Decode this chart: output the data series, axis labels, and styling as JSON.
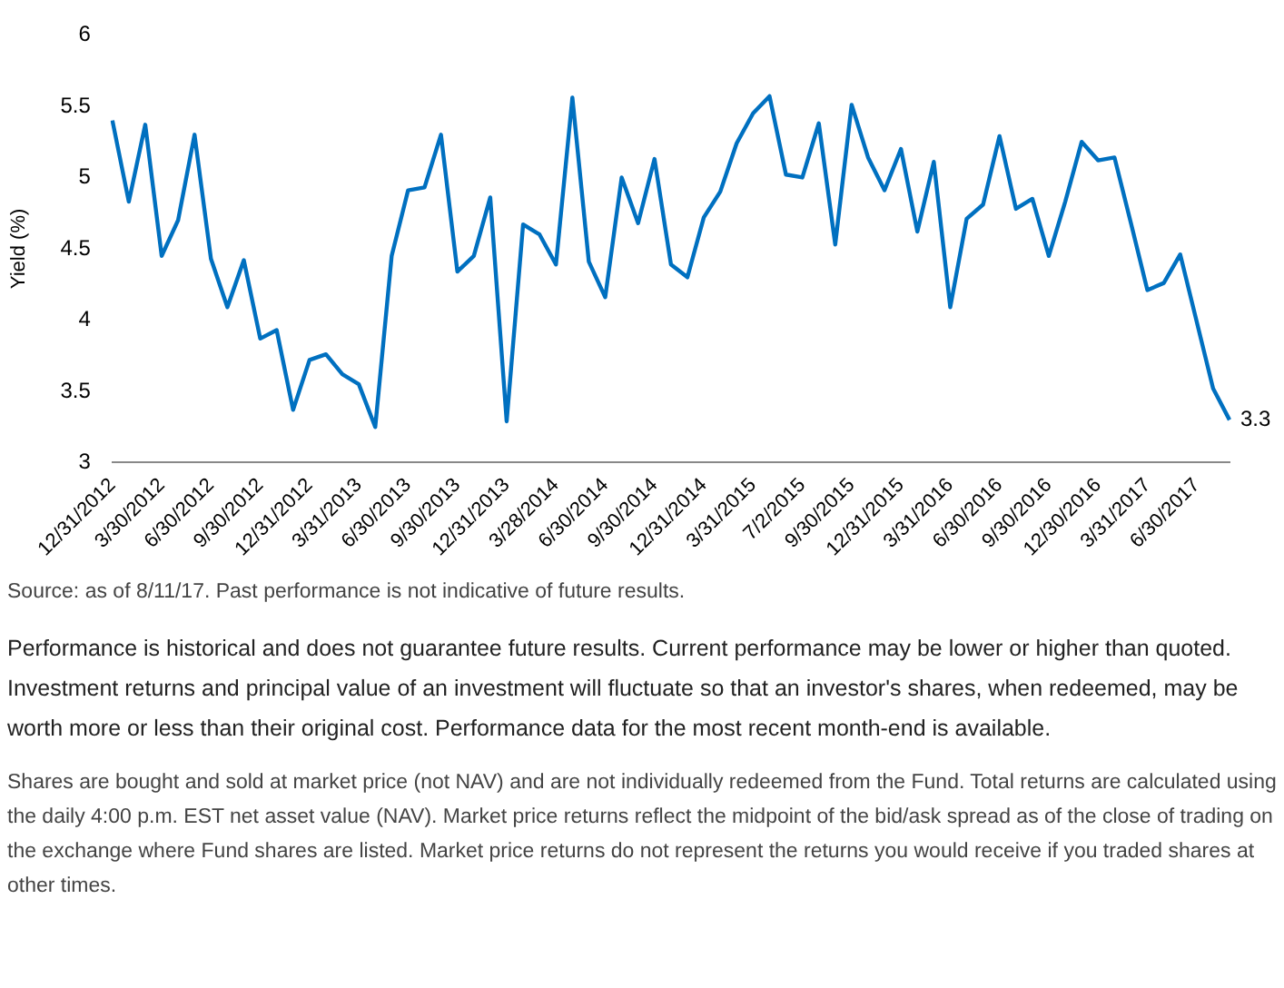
{
  "chart_data": {
    "type": "line",
    "ylabel": "Yield (%)",
    "categories": [
      "12/31/2012",
      null,
      null,
      "3/30/2012",
      null,
      null,
      "6/30/2012",
      null,
      null,
      "9/30/2012",
      null,
      null,
      "12/31/2012",
      null,
      null,
      "3/31/2013",
      null,
      null,
      "6/30/2013",
      null,
      null,
      "9/30/2013",
      null,
      null,
      "12/31/2013",
      null,
      null,
      "3/28/2014",
      null,
      null,
      "6/30/2014",
      null,
      null,
      "9/30/2014",
      null,
      null,
      "12/31/2014",
      null,
      null,
      "3/31/2015",
      null,
      null,
      "7/2/2015",
      null,
      null,
      "9/30/2015",
      null,
      null,
      "12/31/2015",
      null,
      null,
      "3/31/2016",
      null,
      null,
      "6/30/2016",
      null,
      null,
      "9/30/2016",
      null,
      null,
      "12/30/2016",
      null,
      null,
      "3/31/2017",
      null,
      null,
      "6/30/2017",
      null,
      null
    ],
    "series": [
      {
        "color": "#0070c0",
        "values": [
          5.4,
          4.83,
          5.37,
          4.45,
          4.7,
          5.3,
          4.43,
          4.09,
          4.42,
          3.87,
          3.93,
          3.37,
          3.72,
          3.76,
          3.62,
          3.55,
          3.25,
          4.45,
          4.91,
          4.93,
          5.3,
          4.34,
          4.45,
          4.86,
          3.29,
          4.67,
          4.6,
          4.39,
          5.56,
          4.41,
          4.16,
          5.0,
          4.68,
          5.13,
          4.39,
          4.3,
          4.72,
          4.9,
          5.24,
          5.45,
          5.57,
          5.02,
          5.0,
          5.38,
          4.53,
          5.51,
          5.14,
          4.91,
          5.2,
          4.62,
          5.11,
          4.09,
          4.71,
          4.81,
          5.29,
          4.78,
          4.85,
          4.45,
          4.83,
          5.25,
          5.12,
          5.14,
          4.68,
          4.21,
          4.26,
          4.46,
          3.99,
          3.52,
          3.3
        ],
        "value_labels": [
          null,
          null,
          null,
          null,
          null,
          null,
          null,
          null,
          null,
          null,
          null,
          null,
          null,
          null,
          null,
          null,
          null,
          null,
          null,
          null,
          null,
          null,
          null,
          null,
          null,
          null,
          null,
          null,
          null,
          null,
          null,
          null,
          null,
          null,
          null,
          null,
          null,
          null,
          null,
          null,
          null,
          null,
          null,
          null,
          null,
          null,
          null,
          null,
          null,
          null,
          null,
          null,
          null,
          null,
          null,
          null,
          null,
          null,
          null,
          null,
          null,
          null,
          null,
          null,
          null,
          null,
          null,
          null,
          "3.3"
        ]
      }
    ],
    "ylim": [
      3,
      6
    ],
    "yticks": [
      3,
      3.5,
      4,
      4.5,
      5,
      5.5,
      6
    ],
    "grid": false,
    "legend": false,
    "marker": "none",
    "line_style": "solid",
    "annotations": [
      "Source: as of 8/11/17. Past performance is not indicative of future results.",
      "Performance is historical and does not guarantee future results. Current performance may be lower or higher than quoted. Investment returns and principal value of an investment will fluctuate so that an investor's shares, when redeemed, may be worth more or less than their original cost. Performance data for the most recent month-end is available.",
      "Shares are bought and sold at market price (not NAV) and are not individually redeemed from the Fund. Total returns are calculated using the daily 4:00 p.m. EST net asset value (NAV). Market price returns reflect the midpoint of the bid/ask spread as of the close of trading on the exchange where Fund shares are listed. Market price returns do not represent the returns you would receive if you traded shares at other times."
    ]
  }
}
